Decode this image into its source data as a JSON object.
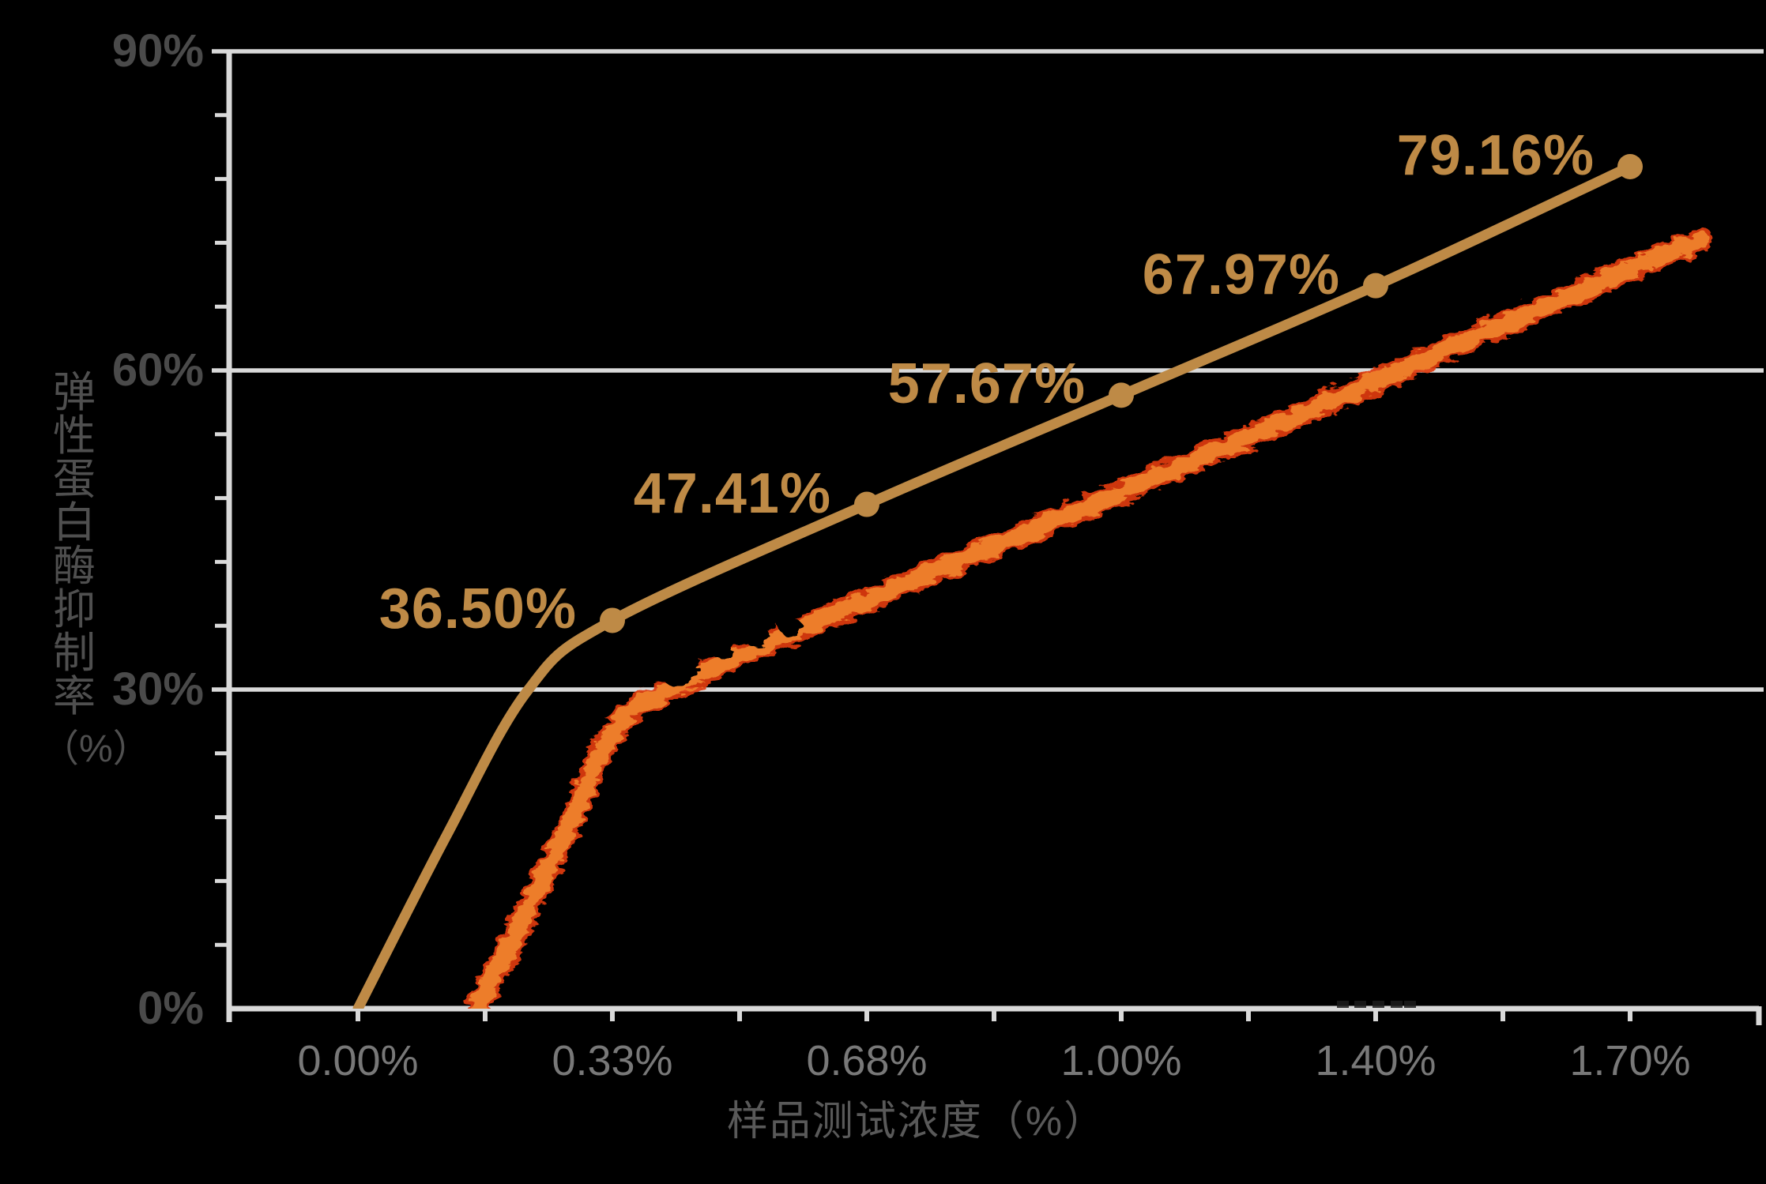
{
  "chart_data": {
    "type": "line",
    "title": "",
    "xlabel": "样品测试浓度（%）",
    "ylabel": "弹性蛋白酶抑制率（%）",
    "ylabel_chars": "弹性蛋白酶抑制率",
    "ylabel_unit": "（%）",
    "x_categories": [
      "0.00%",
      "0.33%",
      "0.68%",
      "1.00%",
      "1.40%",
      "1.70%"
    ],
    "y_tick_values": [
      0,
      30,
      60,
      90
    ],
    "y_tick_labels": [
      "0%",
      "30%",
      "60%",
      "90%"
    ],
    "ylim": [
      0,
      90
    ],
    "y_minor_tick_step_pct": 6,
    "grid": "horizontal gridlines at 30%, 60%, 90%; minor ticks on both axes",
    "legend": "none",
    "series": [
      {
        "name": "gold-smooth-line",
        "type": "smooth-line",
        "color": "#BE8A46",
        "marker": "circle",
        "x_index": [
          0,
          1,
          2,
          3,
          4,
          5
        ],
        "values": [
          0,
          36.5,
          47.41,
          57.67,
          67.97,
          79.16
        ],
        "data_labels": [
          "",
          "36.50%",
          "47.41%",
          "57.67%",
          "67.97%",
          "79.16%"
        ]
      },
      {
        "name": "orange-rough-line",
        "type": "smooth-line-rough-texture",
        "color": "#ED7D2B",
        "edge_color": "#DF3A0E",
        "marker": "none",
        "data_labels": [],
        "values_estimated_from_pixels": true,
        "x_index": [
          0.47,
          0.8,
          1,
          1.22,
          2,
          3,
          4,
          5,
          5.28
        ],
        "values": [
          0,
          15.7,
          25.9,
          29.9,
          38.4,
          48.5,
          59.0,
          69.5,
          72.3
        ]
      }
    ]
  },
  "colors": {
    "background": "#000000",
    "axis": "#D9D9D9",
    "gridline": "#D9D9D9",
    "y_tick_label": "#4A4A4A",
    "x_tick_label": "#787878",
    "y_axis_title": "#4F4F4F",
    "x_axis_title": "#595959",
    "gold": "#BE8A46"
  }
}
